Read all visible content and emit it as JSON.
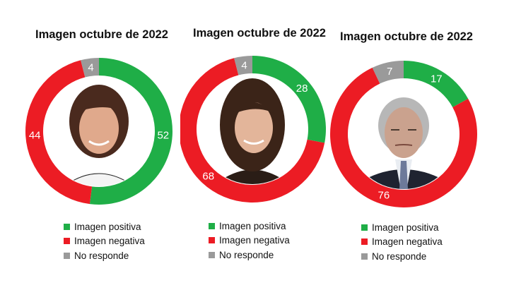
{
  "chart_data": [
    {
      "type": "pie",
      "title": "Imagen octubre de 2022",
      "categories": [
        "Imagen positiva",
        "Imagen negativa",
        "No responde"
      ],
      "values": [
        52,
        44,
        4
      ],
      "portrait": "portrait-woman-short-brown-hair"
    },
    {
      "type": "pie",
      "title": "Imagen octubre de 2022",
      "categories": [
        "Imagen positiva",
        "Imagen negativa",
        "No responde"
      ],
      "values": [
        28,
        68,
        4
      ],
      "portrait": "portrait-woman-long-dark-hair"
    },
    {
      "type": "pie",
      "title": "Imagen octubre de 2022",
      "categories": [
        "Imagen positiva",
        "Imagen negativa",
        "No responde"
      ],
      "values": [
        17,
        76,
        7
      ],
      "portrait": "portrait-man-grey-hair-suit"
    }
  ],
  "colors": {
    "positive": "#1fae47",
    "negative": "#ec1c24",
    "no_response": "#9a9a9a",
    "label_text": "#ffffff"
  }
}
